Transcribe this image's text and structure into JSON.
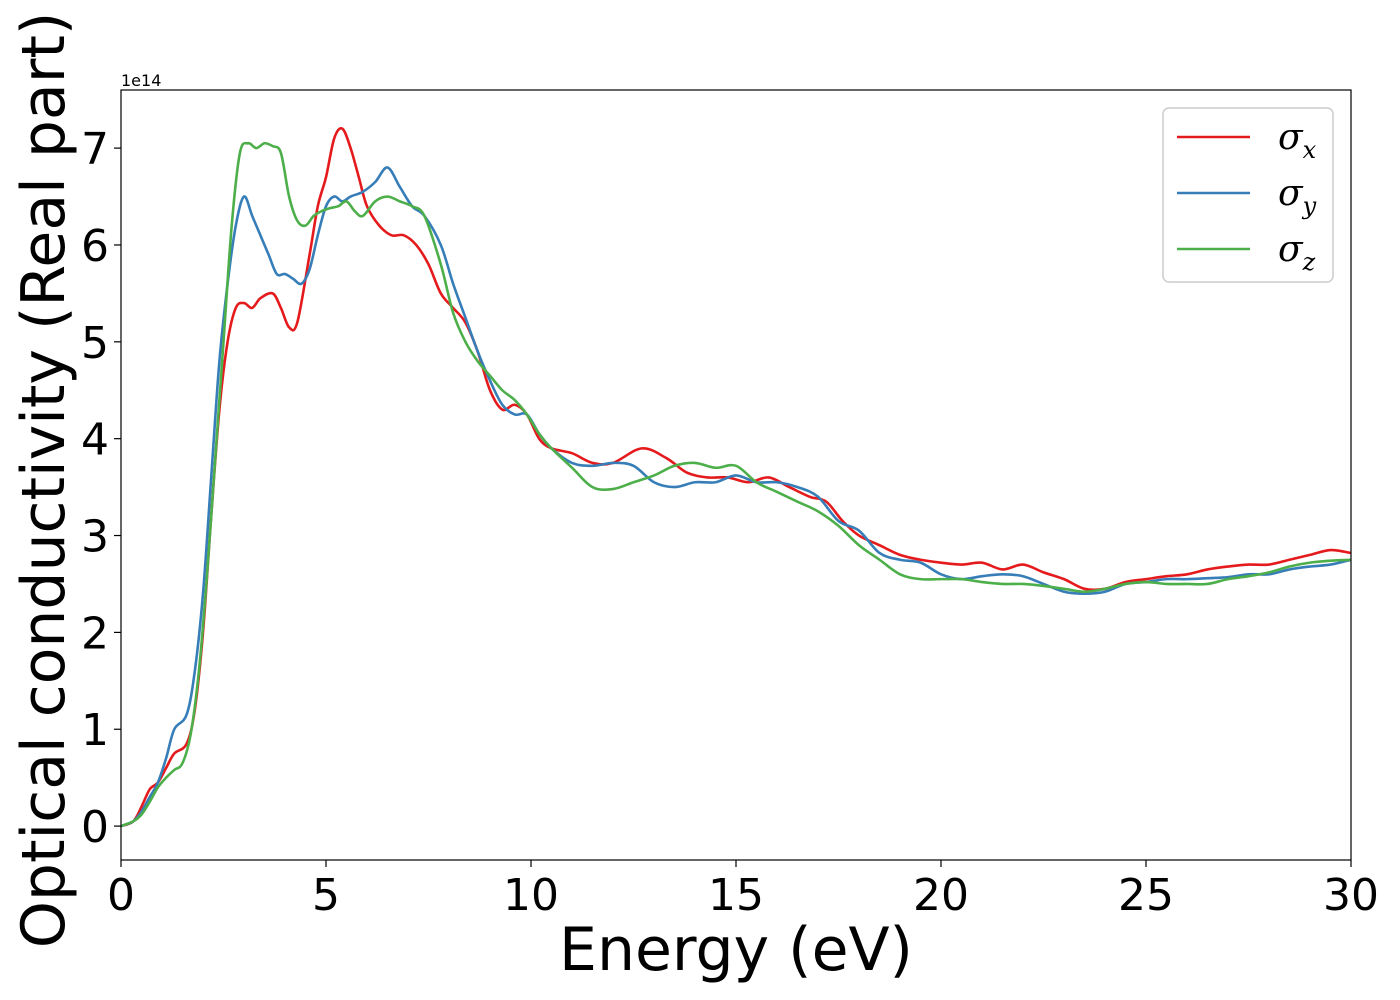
{
  "chart_data": {
    "type": "line",
    "title": "",
    "xlabel": "Energy (eV)",
    "ylabel": "Optical conductivity (Real part)",
    "y_offset_label": "1e14",
    "xlim": [
      0,
      30
    ],
    "ylim": [
      -0.35,
      7.6
    ],
    "xticks": [
      0,
      5,
      10,
      15,
      20,
      25,
      30
    ],
    "yticks": [
      0,
      1,
      2,
      3,
      4,
      5,
      6,
      7
    ],
    "grid": false,
    "legend_position": "top-right",
    "series": [
      {
        "name": "σx",
        "symbol": "σ",
        "subscript": "x",
        "color": "#e41a1c",
        "x": [
          0,
          0.3,
          0.5,
          0.7,
          0.9,
          1.1,
          1.3,
          1.6,
          1.8,
          2.0,
          2.2,
          2.4,
          2.6,
          2.8,
          3.0,
          3.2,
          3.4,
          3.7,
          3.9,
          4.1,
          4.3,
          4.6,
          4.8,
          5.0,
          5.2,
          5.4,
          5.6,
          5.8,
          6.0,
          6.3,
          6.6,
          6.9,
          7.2,
          7.5,
          7.8,
          8.1,
          8.4,
          8.7,
          9.0,
          9.3,
          9.6,
          9.9,
          10.2,
          10.5,
          11.0,
          11.5,
          12.0,
          12.7,
          13.3,
          13.8,
          14.3,
          14.8,
          15.3,
          15.8,
          16.3,
          16.8,
          17.2,
          17.6,
          18.0,
          18.5,
          19.0,
          19.5,
          20.0,
          20.5,
          21.0,
          21.5,
          22.0,
          22.5,
          23.0,
          23.5,
          24.0,
          24.5,
          25.0,
          25.5,
          26.0,
          26.5,
          27.0,
          27.5,
          28.0,
          28.5,
          29.0,
          29.5,
          30.0
        ],
        "y": [
          0,
          0.05,
          0.2,
          0.38,
          0.45,
          0.6,
          0.75,
          0.85,
          1.2,
          2.0,
          3.2,
          4.3,
          5.0,
          5.35,
          5.4,
          5.35,
          5.45,
          5.5,
          5.35,
          5.15,
          5.2,
          5.9,
          6.4,
          6.7,
          7.1,
          7.2,
          7.0,
          6.7,
          6.4,
          6.2,
          6.1,
          6.1,
          6.0,
          5.8,
          5.5,
          5.35,
          5.2,
          4.9,
          4.5,
          4.3,
          4.35,
          4.25,
          4.0,
          3.9,
          3.85,
          3.75,
          3.75,
          3.9,
          3.8,
          3.65,
          3.6,
          3.6,
          3.55,
          3.6,
          3.5,
          3.4,
          3.35,
          3.15,
          3.0,
          2.9,
          2.8,
          2.75,
          2.72,
          2.7,
          2.72,
          2.65,
          2.7,
          2.62,
          2.55,
          2.45,
          2.45,
          2.52,
          2.55,
          2.58,
          2.6,
          2.65,
          2.68,
          2.7,
          2.7,
          2.75,
          2.8,
          2.85,
          2.82
        ]
      },
      {
        "name": "σy",
        "symbol": "σ",
        "subscript": "y",
        "color": "#377eb8",
        "x": [
          0,
          0.3,
          0.5,
          0.7,
          0.9,
          1.1,
          1.3,
          1.6,
          1.8,
          2.0,
          2.2,
          2.4,
          2.6,
          2.8,
          3.0,
          3.2,
          3.4,
          3.6,
          3.8,
          4.0,
          4.2,
          4.4,
          4.6,
          4.8,
          5.0,
          5.2,
          5.4,
          5.6,
          5.9,
          6.2,
          6.5,
          6.8,
          7.1,
          7.4,
          7.8,
          8.1,
          8.4,
          8.7,
          9.0,
          9.3,
          9.6,
          9.9,
          10.2,
          10.5,
          11.0,
          11.5,
          12.0,
          12.5,
          13.0,
          13.5,
          14.0,
          14.5,
          15.0,
          15.5,
          16.0,
          16.5,
          17.0,
          17.5,
          18.0,
          18.5,
          19.0,
          19.5,
          20.0,
          20.5,
          21.0,
          21.5,
          22.0,
          22.5,
          23.0,
          23.5,
          24.0,
          24.5,
          25.0,
          25.5,
          26.0,
          26.5,
          27.0,
          27.5,
          28.0,
          28.5,
          29.0,
          29.5,
          30.0
        ],
        "y": [
          0,
          0.05,
          0.15,
          0.3,
          0.45,
          0.7,
          1.0,
          1.15,
          1.6,
          2.4,
          3.6,
          4.8,
          5.6,
          6.2,
          6.5,
          6.3,
          6.1,
          5.9,
          5.7,
          5.7,
          5.65,
          5.6,
          5.75,
          6.1,
          6.4,
          6.5,
          6.45,
          6.5,
          6.55,
          6.65,
          6.8,
          6.6,
          6.4,
          6.3,
          6.0,
          5.6,
          5.25,
          4.9,
          4.6,
          4.35,
          4.25,
          4.25,
          4.05,
          3.9,
          3.75,
          3.72,
          3.75,
          3.72,
          3.55,
          3.5,
          3.55,
          3.55,
          3.62,
          3.55,
          3.55,
          3.5,
          3.4,
          3.15,
          3.05,
          2.82,
          2.75,
          2.72,
          2.6,
          2.55,
          2.58,
          2.6,
          2.58,
          2.5,
          2.42,
          2.4,
          2.42,
          2.5,
          2.52,
          2.55,
          2.55,
          2.56,
          2.57,
          2.6,
          2.6,
          2.65,
          2.68,
          2.7,
          2.75
        ]
      },
      {
        "name": "σz",
        "symbol": "σ",
        "subscript": "z",
        "color": "#4daf4a",
        "x": [
          0,
          0.3,
          0.5,
          0.7,
          0.9,
          1.1,
          1.3,
          1.5,
          1.7,
          1.9,
          2.1,
          2.3,
          2.5,
          2.7,
          2.9,
          3.1,
          3.3,
          3.5,
          3.7,
          3.9,
          4.1,
          4.3,
          4.5,
          4.7,
          4.9,
          5.1,
          5.3,
          5.5,
          5.7,
          5.9,
          6.2,
          6.5,
          6.8,
          7.1,
          7.4,
          7.8,
          8.1,
          8.4,
          8.7,
          9.0,
          9.3,
          9.6,
          9.9,
          10.2,
          10.5,
          11.0,
          11.5,
          12.0,
          12.5,
          13.0,
          13.5,
          14.0,
          14.5,
          15.0,
          15.5,
          16.0,
          16.5,
          17.0,
          17.5,
          18.0,
          18.5,
          19.0,
          19.5,
          20.0,
          20.5,
          21.0,
          21.5,
          22.0,
          22.5,
          23.0,
          23.5,
          24.0,
          24.5,
          25.0,
          25.5,
          26.0,
          26.5,
          27.0,
          27.5,
          28.0,
          28.5,
          29.0,
          29.5,
          30.0
        ],
        "y": [
          0,
          0.05,
          0.12,
          0.25,
          0.4,
          0.5,
          0.58,
          0.65,
          0.95,
          1.6,
          2.6,
          3.8,
          5.0,
          6.2,
          6.95,
          7.05,
          7.0,
          7.05,
          7.02,
          6.95,
          6.5,
          6.25,
          6.2,
          6.3,
          6.35,
          6.38,
          6.4,
          6.45,
          6.35,
          6.3,
          6.45,
          6.5,
          6.45,
          6.4,
          6.3,
          5.8,
          5.3,
          5.0,
          4.8,
          4.65,
          4.5,
          4.4,
          4.25,
          4.05,
          3.9,
          3.7,
          3.5,
          3.48,
          3.55,
          3.62,
          3.72,
          3.75,
          3.7,
          3.72,
          3.55,
          3.45,
          3.35,
          3.25,
          3.1,
          2.9,
          2.75,
          2.6,
          2.55,
          2.55,
          2.55,
          2.52,
          2.5,
          2.5,
          2.48,
          2.45,
          2.42,
          2.45,
          2.5,
          2.52,
          2.5,
          2.5,
          2.5,
          2.55,
          2.58,
          2.62,
          2.68,
          2.72,
          2.74,
          2.75
        ]
      }
    ]
  }
}
